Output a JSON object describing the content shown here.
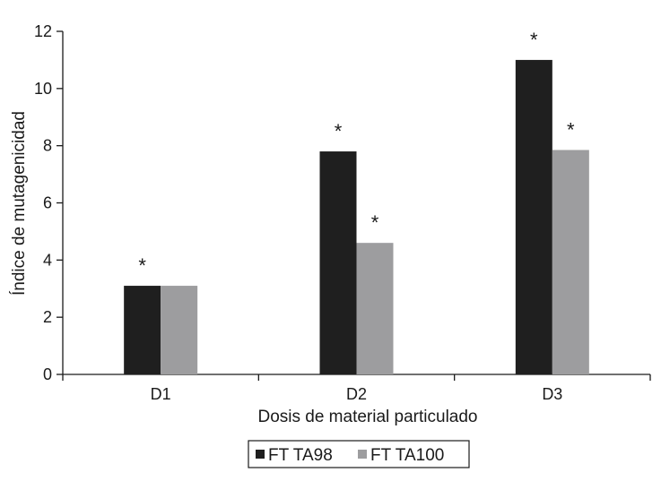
{
  "chart_data": {
    "type": "bar",
    "title": "",
    "xlabel": "Dosis de material particulado",
    "ylabel": "Índice de mutagenicidad",
    "categories": [
      "D1",
      "D2",
      "D3"
    ],
    "ylim": [
      0,
      12
    ],
    "yticks": [
      0,
      2,
      4,
      6,
      8,
      10,
      12
    ],
    "series": [
      {
        "name": "FT TA98",
        "values": [
          3.1,
          7.8,
          11.0
        ],
        "color": "#1f1f1f",
        "significant": [
          true,
          true,
          true
        ]
      },
      {
        "name": "FT TA100",
        "values": [
          3.1,
          4.6,
          7.85
        ],
        "color": "#9d9d9f",
        "significant": [
          false,
          true,
          true
        ]
      }
    ],
    "significance_marker": "*",
    "grid": false,
    "legend": "bottom-center"
  }
}
